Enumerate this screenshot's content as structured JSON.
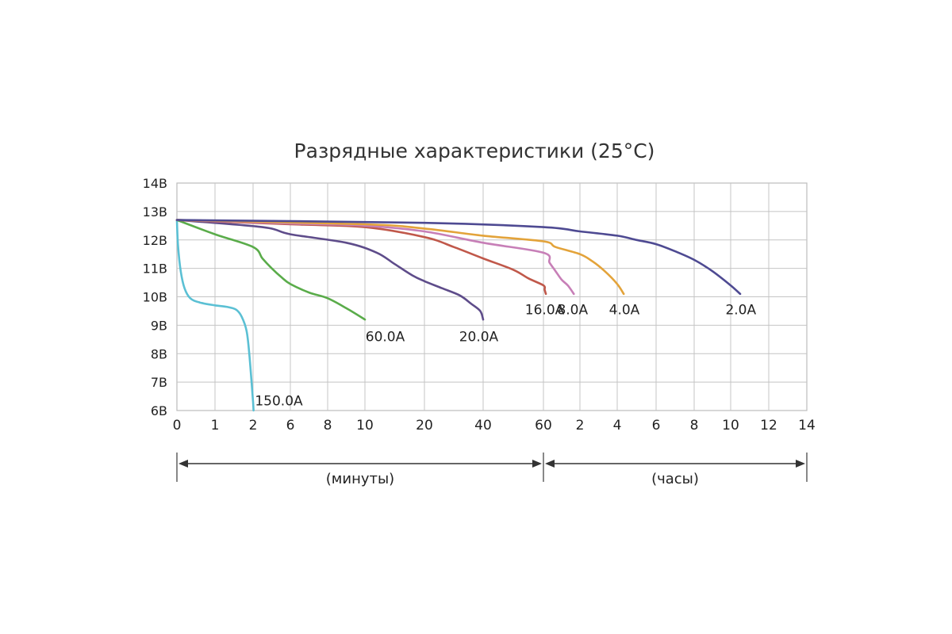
{
  "chart_data": {
    "type": "line",
    "title": "Разрядные характеристики (25°C)",
    "ylabel": "",
    "xlabel": "",
    "y_ticks": [
      "14В",
      "13В",
      "12В",
      "11В",
      "10В",
      "9В",
      "8В",
      "7В",
      "6В"
    ],
    "ylim": [
      6,
      14
    ],
    "x_ticks": [
      "0",
      "1",
      "2",
      "6",
      "8",
      "10",
      "20",
      "40",
      "60",
      "2",
      "4",
      "6",
      "8",
      "10",
      "12",
      "14"
    ],
    "x_ranges": [
      {
        "label": "(минуты)",
        "from_tick": 0,
        "to_tick": 8
      },
      {
        "label": "(часы)",
        "from_tick": 8,
        "to_tick": 15
      }
    ],
    "grid": true,
    "x_scale": "piecewise: tick index positions",
    "series": [
      {
        "name": "150.0A",
        "color": "#5bc0d4",
        "points": [
          [
            0,
            12.7
          ],
          [
            0.03,
            11.8
          ],
          [
            0.1,
            10.9
          ],
          [
            0.2,
            10.3
          ],
          [
            0.35,
            9.95
          ],
          [
            0.6,
            9.8
          ],
          [
            1.0,
            9.7
          ],
          [
            1.3,
            9.65
          ],
          [
            1.55,
            9.55
          ],
          [
            1.7,
            9.3
          ],
          [
            1.83,
            8.8
          ],
          [
            1.9,
            8.0
          ],
          [
            1.96,
            7.0
          ],
          [
            2.0,
            6.3
          ],
          [
            2.05,
            6.0
          ]
        ]
      },
      {
        "name": "60.0A",
        "color": "#5aac4a",
        "points": [
          [
            0,
            12.7
          ],
          [
            1,
            12.2
          ],
          [
            2,
            11.75
          ],
          [
            3,
            11.35
          ],
          [
            4,
            11.0
          ],
          [
            5,
            10.7
          ],
          [
            6,
            10.45
          ],
          [
            7,
            10.15
          ],
          [
            8,
            9.95
          ],
          [
            9,
            9.6
          ],
          [
            10,
            9.2
          ]
        ]
      },
      {
        "name": "20.0A",
        "color": "#5e4c8a",
        "points": [
          [
            0,
            12.7
          ],
          [
            3,
            12.45
          ],
          [
            6,
            12.2
          ],
          [
            9,
            11.9
          ],
          [
            12,
            11.55
          ],
          [
            15,
            11.15
          ],
          [
            18,
            10.75
          ],
          [
            20,
            10.55
          ],
          [
            26,
            10.3
          ],
          [
            32,
            10.05
          ],
          [
            36,
            9.75
          ],
          [
            39,
            9.5
          ],
          [
            40,
            9.2
          ]
        ]
      },
      {
        "name": "16.0A",
        "color": "#c0584a",
        "points": [
          [
            0,
            12.7
          ],
          [
            6,
            12.55
          ],
          [
            10,
            12.45
          ],
          [
            20,
            12.1
          ],
          [
            30,
            11.75
          ],
          [
            40,
            11.35
          ],
          [
            50,
            10.95
          ],
          [
            55,
            10.65
          ],
          [
            60,
            10.4
          ],
          [
            62,
            10.25
          ],
          [
            64,
            10.1
          ]
        ]
      },
      {
        "name": "8.0A",
        "color": "#c77fb7",
        "points": [
          [
            0,
            12.7
          ],
          [
            6,
            12.58
          ],
          [
            10,
            12.5
          ],
          [
            20,
            12.3
          ],
          [
            40,
            11.9
          ],
          [
            60,
            11.55
          ],
          [
            70,
            11.2
          ],
          [
            80,
            10.9
          ],
          [
            90,
            10.6
          ],
          [
            100,
            10.4
          ],
          [
            110,
            10.1
          ]
        ]
      },
      {
        "name": "4.0A",
        "color": "#e3a33a",
        "points": [
          [
            0,
            12.7
          ],
          [
            10,
            12.55
          ],
          [
            20,
            12.4
          ],
          [
            40,
            12.15
          ],
          [
            60,
            11.95
          ],
          [
            80,
            11.75
          ],
          [
            120,
            11.5
          ],
          [
            160,
            11.25
          ],
          [
            200,
            10.9
          ],
          [
            240,
            10.45
          ],
          [
            260,
            10.1
          ]
        ]
      },
      {
        "name": "2.0A",
        "color": "#4e4a92",
        "points": [
          [
            0,
            12.7
          ],
          [
            20,
            12.6
          ],
          [
            60,
            12.45
          ],
          [
            120,
            12.3
          ],
          [
            240,
            12.15
          ],
          [
            300,
            12.0
          ],
          [
            360,
            11.85
          ],
          [
            420,
            11.6
          ],
          [
            480,
            11.3
          ],
          [
            540,
            10.9
          ],
          [
            600,
            10.4
          ],
          [
            630,
            10.1
          ]
        ]
      }
    ],
    "series_label_positions": {
      "150.0A": [
        2.2,
        6.35
      ],
      "60.0A": [
        10.1,
        8.6
      ],
      "20.0A": [
        38.5,
        8.6
      ],
      "16.0A": [
        62,
        9.55
      ],
      "8.0A": [
        108,
        9.55
      ],
      "4.0A": [
        262,
        9.55
      ],
      "2.0A": [
        632,
        9.55
      ]
    }
  }
}
